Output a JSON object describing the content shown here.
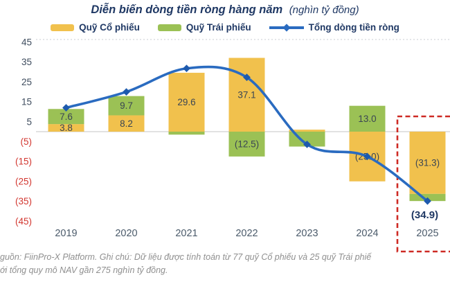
{
  "header": {
    "title": "Diễn biến dòng tiền ròng hàng năm",
    "title_unit": "(nghìn tỷ đồng)"
  },
  "legend": {
    "items": [
      {
        "label": "Quỹ Cổ phiếu",
        "swatch": "bar",
        "color": "#F1C14D"
      },
      {
        "label": "Quỹ Trái phiếu",
        "swatch": "bar",
        "color": "#9BC155"
      },
      {
        "label": "Tổng dòng tiền ròng",
        "swatch": "line-diamond",
        "color": "#2A6BC0"
      }
    ]
  },
  "chart_data": {
    "type": "bar",
    "subtype": "stacked-bars-with-line",
    "title": "Diễn biến dòng tiền ròng hàng năm",
    "unit": "nghìn tỷ đồng",
    "categories": [
      "2019",
      "2020",
      "2021",
      "2022",
      "2023",
      "2024",
      "2025"
    ],
    "series": [
      {
        "name": "Quỹ Cổ phiếu",
        "kind": "bar",
        "color": "#F1C14D",
        "values": [
          3.8,
          8.2,
          29.6,
          37.1,
          1.0,
          -25.0,
          -31.3
        ],
        "labels": [
          "3.8",
          "8.2",
          "29.6",
          "37.1",
          "",
          "(25.0)",
          "(31.3)"
        ]
      },
      {
        "name": "Quỹ Trái phiếu",
        "kind": "bar",
        "color": "#9BC155",
        "values": [
          7.6,
          9.7,
          -1.5,
          -12.5,
          -7.5,
          13.0,
          -3.6
        ],
        "labels": [
          "7.6",
          "9.7",
          "",
          "(12.5)",
          "",
          "13.0",
          ""
        ]
      },
      {
        "name": "Tổng dòng tiền ròng",
        "kind": "line",
        "color": "#2A6BC0",
        "marker_color": "#1D5AAD",
        "values": [
          12.0,
          20.0,
          31.8,
          27.3,
          -6.4,
          -12.5,
          -34.9
        ],
        "labels": [
          "",
          "",
          "",
          "",
          "",
          "",
          "(34.9)"
        ]
      }
    ],
    "ylim": [
      -46,
      47
    ],
    "yticks": [
      45,
      35,
      25,
      15,
      5,
      -5,
      -15,
      -25,
      -35,
      -45
    ],
    "negative_format": "parentheses",
    "gridlines": "zero-line-only",
    "legend_position": "top",
    "highlight": {
      "category": "2025",
      "style": "red-dashed-box"
    }
  },
  "colors": {
    "tick_positive": "#3E4C5E",
    "tick_negative": "#D2362F",
    "zero_line": "#D9D9D9",
    "top_border": "#C9CDD2",
    "highlight_red": "#CE2A24",
    "title_navy": "#1F3864"
  },
  "footer": {
    "line1": "guồn: FiinPro-X Platform. Ghi chú: Dữ liệu được tính toán từ 77 quỹ Cổ phiếu và 25 quỹ Trái phiế",
    "line2": "ới tổng quy mô NAV gần 275 nghìn tỷ đồng."
  }
}
